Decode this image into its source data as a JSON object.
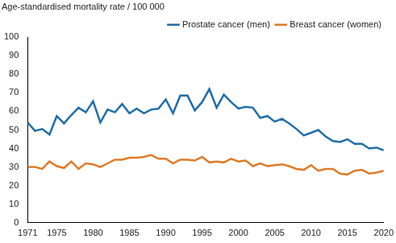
{
  "chart_data": {
    "type": "line",
    "y_label": "Age-standardised mortality rate / 100 000",
    "x": [
      1971,
      1972,
      1973,
      1974,
      1975,
      1976,
      1977,
      1978,
      1979,
      1980,
      1981,
      1982,
      1983,
      1984,
      1985,
      1986,
      1987,
      1988,
      1989,
      1990,
      1991,
      1992,
      1993,
      1994,
      1995,
      1996,
      1997,
      1998,
      1999,
      2000,
      2001,
      2002,
      2003,
      2004,
      2005,
      2006,
      2007,
      2008,
      2009,
      2010,
      2011,
      2012,
      2013,
      2014,
      2015,
      2016,
      2017,
      2018,
      2019,
      2020
    ],
    "series": [
      {
        "name": "Prostate cancer (men)",
        "color": "#1f6ea8",
        "values": [
          54,
          49.5,
          50.5,
          47.5,
          57.5,
          53.5,
          58,
          62,
          59.5,
          65.5,
          54,
          61,
          59.5,
          64,
          59,
          61.5,
          59,
          61,
          61.5,
          66.5,
          59,
          68.5,
          68.5,
          60.5,
          65,
          72,
          62,
          69,
          65,
          61.5,
          62.5,
          62,
          56.5,
          57.5,
          54.5,
          56,
          53.5,
          50.5,
          47,
          48.5,
          50,
          46.5,
          44,
          43.5,
          45,
          42.5,
          42.5,
          40,
          40.5,
          39
        ]
      },
      {
        "name": "Breast cancer (women)",
        "color": "#e07b27",
        "values": [
          30,
          30,
          29,
          33,
          30.5,
          29.5,
          33,
          29,
          32,
          31.5,
          30,
          32,
          34,
          34,
          35,
          35,
          35.5,
          36.5,
          34.5,
          34.5,
          32,
          34,
          34,
          33.5,
          35.5,
          32.5,
          33,
          32.5,
          34.5,
          33,
          33.5,
          30.5,
          32,
          30.5,
          31,
          31.5,
          30.5,
          29,
          28.5,
          31,
          28,
          29,
          29,
          26.5,
          26,
          28,
          28.5,
          26.5,
          27,
          28
        ]
      }
    ],
    "xlim": [
      1971,
      2020
    ],
    "xticks": [
      1971,
      1975,
      1980,
      1985,
      1990,
      1995,
      2000,
      2005,
      2010,
      2015,
      2020
    ],
    "ylim": [
      0,
      100
    ],
    "yticks": [
      0,
      10,
      20,
      30,
      40,
      50,
      60,
      70,
      80,
      90,
      100
    ],
    "grid": false,
    "legend": "top-right"
  }
}
